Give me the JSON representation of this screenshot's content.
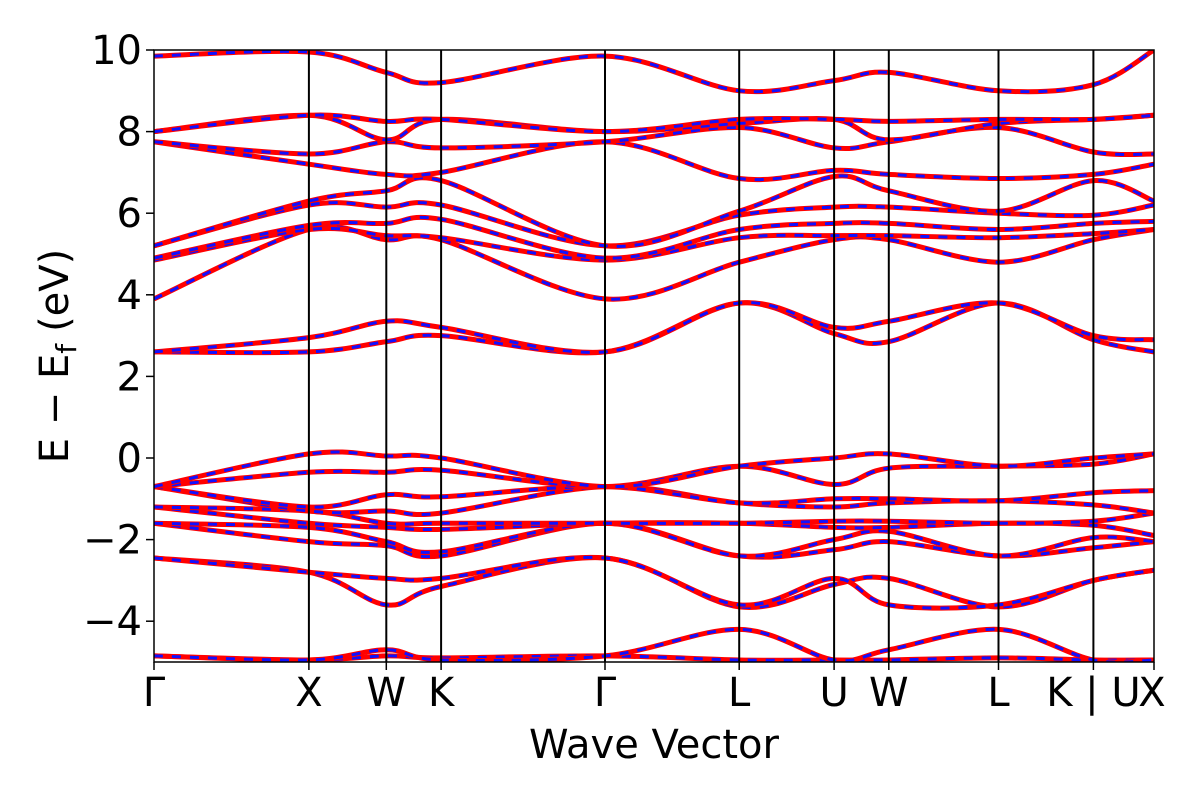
{
  "chart_data": {
    "type": "line",
    "title": "",
    "xlabel": "Wave Vector",
    "ylabel": "E − Eᶠ (eV)",
    "ylabel_parts": {
      "main": "E − E",
      "sub": "f",
      "unit": "(eV)"
    },
    "ylim": [
      -5,
      10
    ],
    "yticks": [
      10,
      8,
      6,
      4,
      2,
      0,
      -2,
      -4
    ],
    "ytick_labels": [
      "10",
      "8",
      "6",
      "4",
      "2",
      "0",
      "−2",
      "−4"
    ],
    "xlim": [
      0,
      1
    ],
    "x_ticks": [
      {
        "label": "Γ",
        "x": 0.0
      },
      {
        "label": "X",
        "x": 0.1549
      },
      {
        "label": "W",
        "x": 0.2323
      },
      {
        "label": "K",
        "x": 0.2871
      },
      {
        "label": "Γ",
        "x": 0.451
      },
      {
        "label": "L",
        "x": 0.5852
      },
      {
        "label": "U",
        "x": 0.6801
      },
      {
        "label": "W",
        "x": 0.7348
      },
      {
        "label": "L",
        "x": 0.8445
      },
      {
        "label": "K | U",
        "x": 0.9394
      },
      {
        "label": "X",
        "x": 1.0
      }
    ],
    "series_styles": [
      {
        "color": "#ff0000",
        "style": "solid"
      },
      {
        "color": "#1010ff",
        "style": "dashed"
      }
    ],
    "x": [
      0.0,
      0.1549,
      0.2323,
      0.2871,
      0.451,
      0.5852,
      0.6801,
      0.7348,
      0.8445,
      0.9394,
      1.0
    ],
    "bands": [
      [
        -4.85,
        -4.95,
        -4.85,
        -4.9,
        -4.85,
        -4.95,
        -4.95,
        -4.95,
        -4.9,
        -4.95,
        -4.95
      ],
      [
        -4.85,
        -4.95,
        -4.7,
        -4.95,
        -4.85,
        -4.2,
        -4.95,
        -4.7,
        -4.2,
        -4.95,
        -4.95
      ],
      [
        -2.45,
        -2.8,
        -3.6,
        -3.15,
        -2.45,
        -3.65,
        -3.1,
        -2.95,
        -3.65,
        -3.0,
        -2.75
      ],
      [
        -2.45,
        -2.8,
        -2.95,
        -2.95,
        -2.45,
        -3.6,
        -2.95,
        -3.6,
        -3.6,
        -3.0,
        -2.75
      ],
      [
        -1.6,
        -2.05,
        -2.15,
        -2.4,
        -1.6,
        -2.4,
        -2.25,
        -2.05,
        -2.4,
        -2.2,
        -2.05
      ],
      [
        -1.6,
        -1.7,
        -2.05,
        -2.3,
        -1.6,
        -2.4,
        -2.0,
        -1.8,
        -2.4,
        -1.95,
        -2.05
      ],
      [
        -1.2,
        -1.6,
        -1.7,
        -1.75,
        -1.6,
        -1.6,
        -1.7,
        -1.7,
        -1.6,
        -1.65,
        -1.9
      ],
      [
        -1.2,
        -1.3,
        -1.6,
        -1.6,
        -1.6,
        -1.6,
        -1.55,
        -1.55,
        -1.6,
        -1.55,
        -1.35
      ],
      [
        -0.7,
        -1.3,
        -1.3,
        -1.35,
        -0.7,
        -1.1,
        -1.2,
        -1.1,
        -1.05,
        -1.15,
        -1.35
      ],
      [
        -0.7,
        -1.2,
        -0.9,
        -0.95,
        -0.7,
        -1.1,
        -1.0,
        -1.0,
        -1.05,
        -0.85,
        -0.8
      ],
      [
        -0.7,
        -0.35,
        -0.35,
        -0.3,
        -0.7,
        -0.2,
        -0.65,
        -0.25,
        -0.2,
        -0.15,
        0.1
      ],
      [
        -0.7,
        0.1,
        0.05,
        0.0,
        -0.7,
        -0.2,
        0.0,
        0.1,
        -0.2,
        0.0,
        0.1
      ],
      [
        2.6,
        2.6,
        2.85,
        3.0,
        2.6,
        3.8,
        3.05,
        2.85,
        3.8,
        2.9,
        2.6
      ],
      [
        2.6,
        2.95,
        3.35,
        3.2,
        2.6,
        3.8,
        3.2,
        3.35,
        3.8,
        3.0,
        2.9
      ],
      [
        3.9,
        5.6,
        5.35,
        5.35,
        3.9,
        4.8,
        5.35,
        5.35,
        4.8,
        5.35,
        5.6
      ],
      [
        4.85,
        5.6,
        5.45,
        5.4,
        4.85,
        5.4,
        5.45,
        5.45,
        5.4,
        5.5,
        5.6
      ],
      [
        4.9,
        5.7,
        5.75,
        5.85,
        4.9,
        5.6,
        5.75,
        5.75,
        5.6,
        5.75,
        5.8
      ],
      [
        5.2,
        6.2,
        6.15,
        6.2,
        5.2,
        5.95,
        6.15,
        6.15,
        6.0,
        5.95,
        6.2
      ],
      [
        5.2,
        6.3,
        6.55,
        6.8,
        5.2,
        6.05,
        6.9,
        6.55,
        6.05,
        6.8,
        6.3
      ],
      [
        7.75,
        7.2,
        6.95,
        7.0,
        7.75,
        6.85,
        7.05,
        6.95,
        6.85,
        6.95,
        7.2
      ],
      [
        7.75,
        7.45,
        7.75,
        7.6,
        7.75,
        8.1,
        7.6,
        7.75,
        8.1,
        7.5,
        7.45
      ],
      [
        8.0,
        8.4,
        7.8,
        8.3,
        8.0,
        8.2,
        8.3,
        7.8,
        8.2,
        8.3,
        8.4
      ],
      [
        8.0,
        8.4,
        8.25,
        8.3,
        8.0,
        8.3,
        8.3,
        8.25,
        8.3,
        8.3,
        8.4
      ],
      [
        9.85,
        9.95,
        9.45,
        9.2,
        9.85,
        9.0,
        9.25,
        9.45,
        9.0,
        9.15,
        10.0
      ]
    ]
  }
}
